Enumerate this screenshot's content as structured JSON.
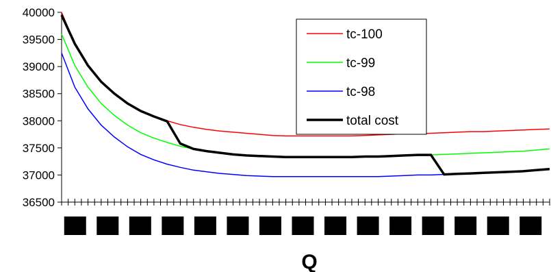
{
  "chart_data": {
    "type": "line",
    "title": "",
    "xlabel": "Q",
    "ylabel": "",
    "ylim": [
      36500,
      40000
    ],
    "yticks": [
      36500,
      37000,
      37500,
      38000,
      38500,
      39000,
      39500,
      40000
    ],
    "ytick_labels": [
      "36500",
      "37000",
      "37500",
      "38000",
      "38500",
      "39000",
      "39500",
      "40000"
    ],
    "x_tick_count": 75,
    "x_category_labels_redacted": 15,
    "grid": false,
    "legend_position": "top-right",
    "x": [
      1,
      3,
      5,
      7,
      9,
      11,
      13,
      15,
      17,
      19,
      21,
      23,
      25,
      27,
      29,
      31,
      33,
      35,
      37,
      39,
      41,
      43,
      45,
      47,
      49,
      51,
      53,
      55,
      57,
      59,
      61,
      63,
      65,
      67,
      69,
      71,
      73,
      75
    ],
    "series": [
      {
        "name": "tc-100",
        "color": "#ff0000",
        "width": 1.5,
        "values": [
          40000,
          39420,
          39020,
          38720,
          38500,
          38320,
          38180,
          38080,
          38000,
          37930,
          37880,
          37840,
          37810,
          37790,
          37770,
          37750,
          37730,
          37720,
          37720,
          37720,
          37720,
          37720,
          37720,
          37730,
          37740,
          37750,
          37760,
          37760,
          37770,
          37780,
          37790,
          37800,
          37800,
          37810,
          37820,
          37830,
          37840,
          37850
        ]
      },
      {
        "name": "tc-99",
        "color": "#00ff00",
        "width": 1.5,
        "values": [
          39600,
          39020,
          38620,
          38320,
          38100,
          37920,
          37780,
          37680,
          37600,
          37530,
          37480,
          37440,
          37410,
          37380,
          37360,
          37350,
          37340,
          37330,
          37330,
          37330,
          37330,
          37330,
          37330,
          37340,
          37340,
          37350,
          37360,
          37370,
          37370,
          37380,
          37390,
          37400,
          37410,
          37420,
          37430,
          37440,
          37460,
          37480
        ]
      },
      {
        "name": "tc-98",
        "color": "#0000ff",
        "width": 1.5,
        "values": [
          39250,
          38620,
          38220,
          37920,
          37700,
          37520,
          37380,
          37280,
          37200,
          37140,
          37090,
          37060,
          37030,
          37010,
          36990,
          36980,
          36970,
          36970,
          36970,
          36970,
          36970,
          36970,
          36970,
          36970,
          36970,
          36980,
          36990,
          37000,
          37000,
          37010,
          37020,
          37030,
          37040,
          37050,
          37060,
          37070,
          37090,
          37110
        ]
      },
      {
        "name": "total cost",
        "color": "#000000",
        "width": 3.5,
        "values": [
          39950,
          39420,
          39020,
          38720,
          38500,
          38320,
          38180,
          38080,
          37990,
          37580,
          37480,
          37440,
          37410,
          37380,
          37360,
          37350,
          37340,
          37330,
          37330,
          37330,
          37330,
          37330,
          37330,
          37340,
          37340,
          37350,
          37360,
          37370,
          37370,
          37010,
          37020,
          37030,
          37040,
          37050,
          37060,
          37070,
          37090,
          37110
        ]
      }
    ]
  }
}
